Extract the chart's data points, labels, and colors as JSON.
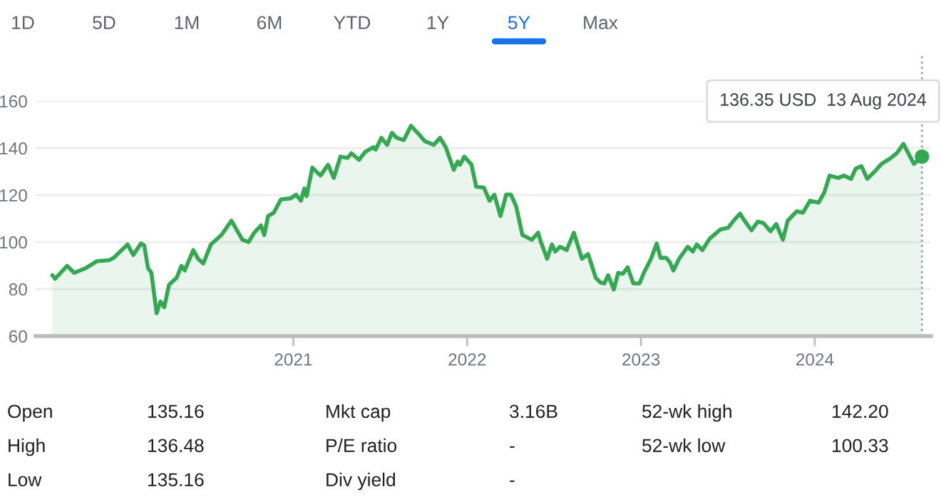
{
  "chart_data": [
    {
      "type": "other",
      "annotations": [
        "1D",
        "5D",
        "1M",
        "6M",
        "YTD",
        "1Y",
        "5Y",
        "Max"
      ],
      "colors": [
        "#5f6368",
        "#5f6368",
        "#5f6368",
        "#5f6368",
        "#5f6368",
        "#5f6368",
        "#1a73e8",
        "#5f6368"
      ]
    },
    {
      "type": "area",
      "xlim": [
        "2019-07-10",
        "2024-09-01"
      ],
      "ylim": [
        60,
        160
      ],
      "xticks": [
        {
          "value": "2021-01-01",
          "label": "2021"
        },
        {
          "value": "2022-01-01",
          "label": "2022"
        },
        {
          "value": "2023-01-01",
          "label": "2023"
        },
        {
          "value": "2024-01-01",
          "label": "2024"
        }
      ],
      "yticks": [
        60,
        80,
        100,
        120,
        140,
        160
      ],
      "grid": "y",
      "ref_lines": [
        {
          "axis": "x",
          "value": "2024-08-13",
          "line_style": "dotted",
          "color": "#9aa0a6"
        }
      ],
      "annotations": [
        "136.35 USD  13 Aug 2024"
      ],
      "series": [
        {
          "color": "#34a853",
          "x": [
            "2019-08-14",
            "2019-08-20",
            "2019-09-14",
            "2019-09-29",
            "2019-10-23",
            "2019-11-16",
            "2019-12-11",
            "2019-12-21",
            "2020-01-19",
            "2020-01-31",
            "2020-02-16",
            "2020-02-23",
            "2020-03-02",
            "2020-03-09",
            "2020-03-20",
            "2020-03-28",
            "2020-04-05",
            "2020-04-15",
            "2020-05-01",
            "2020-05-11",
            "2020-05-18",
            "2020-06-05",
            "2020-06-15",
            "2020-06-26",
            "2020-07-12",
            "2020-08-03",
            "2020-08-24",
            "2020-09-16",
            "2020-09-29",
            "2020-10-11",
            "2020-10-25",
            "2020-11-01",
            "2020-11-09",
            "2020-11-21",
            "2020-12-06",
            "2020-12-26",
            "2021-01-07",
            "2021-01-17",
            "2021-01-24",
            "2021-01-29",
            "2021-02-10",
            "2021-02-27",
            "2021-03-15",
            "2021-03-27",
            "2021-04-10",
            "2021-04-25",
            "2021-05-03",
            "2021-05-19",
            "2021-06-01",
            "2021-06-18",
            "2021-06-23",
            "2021-07-05",
            "2021-07-17",
            "2021-07-27",
            "2021-08-06",
            "2021-08-21",
            "2021-09-05",
            "2021-09-19",
            "2021-10-04",
            "2021-10-23",
            "2021-11-05",
            "2021-11-17",
            "2021-12-04",
            "2021-12-12",
            "2021-12-17",
            "2021-12-26",
            "2022-01-10",
            "2022-01-20",
            "2022-02-05",
            "2022-02-17",
            "2022-02-27",
            "2022-03-12",
            "2022-03-24",
            "2022-04-03",
            "2022-04-14",
            "2022-04-27",
            "2022-05-17",
            "2022-05-30",
            "2022-06-05",
            "2022-06-18",
            "2022-06-28",
            "2022-07-05",
            "2022-07-15",
            "2022-07-29",
            "2022-08-13",
            "2022-08-30",
            "2022-09-12",
            "2022-09-28",
            "2022-10-08",
            "2022-10-16",
            "2022-10-24",
            "2022-11-05",
            "2022-11-14",
            "2022-11-24",
            "2022-12-04",
            "2022-12-16",
            "2022-12-29",
            "2023-01-07",
            "2023-01-22",
            "2023-02-03",
            "2023-02-11",
            "2023-02-23",
            "2023-03-03",
            "2023-03-10",
            "2023-03-22",
            "2023-04-09",
            "2023-04-20",
            "2023-04-28",
            "2023-05-10",
            "2023-05-25",
            "2023-06-17",
            "2023-07-03",
            "2023-07-16",
            "2023-07-28",
            "2023-08-05",
            "2023-08-21",
            "2023-09-03",
            "2023-09-15",
            "2023-09-30",
            "2023-10-12",
            "2023-10-26",
            "2023-11-05",
            "2023-11-24",
            "2023-12-07",
            "2023-12-22",
            "2024-01-09",
            "2024-01-21",
            "2024-02-01",
            "2024-02-19",
            "2024-03-02",
            "2024-03-17",
            "2024-03-27",
            "2024-04-08",
            "2024-04-20",
            "2024-05-07",
            "2024-05-20",
            "2024-06-06",
            "2024-06-21",
            "2024-07-05",
            "2024-07-27",
            "2024-08-13"
          ],
          "values": [
            85.9,
            84.4,
            89.9,
            86.9,
            88.9,
            91.9,
            92.3,
            93.3,
            99.0,
            94.5,
            99.4,
            98.6,
            88.9,
            86.9,
            69.7,
            74.7,
            72.3,
            81.8,
            84.8,
            89.9,
            87.9,
            96.6,
            92.9,
            90.9,
            99.0,
            103.0,
            109.1,
            101.0,
            100.0,
            104.0,
            107.1,
            103.0,
            111.1,
            112.5,
            118.2,
            118.6,
            120.2,
            117.6,
            122.8,
            119.6,
            131.7,
            128.3,
            132.9,
            127.3,
            136.4,
            135.8,
            137.8,
            135.0,
            138.4,
            140.4,
            139.4,
            144.4,
            141.4,
            146.5,
            144.4,
            143.4,
            149.5,
            146.5,
            143.0,
            141.4,
            144.4,
            140.4,
            130.7,
            134.3,
            132.9,
            136.4,
            133.0,
            123.6,
            123.2,
            117.6,
            120.2,
            111.1,
            120.2,
            120.2,
            115.2,
            103.0,
            101.0,
            104.0,
            100.0,
            92.9,
            99.0,
            96.0,
            98.0,
            96.6,
            104.0,
            92.9,
            94.9,
            84.8,
            82.8,
            82.4,
            85.9,
            79.8,
            86.9,
            86.5,
            89.3,
            82.4,
            82.4,
            86.9,
            92.9,
            99.4,
            93.3,
            93.3,
            91.3,
            87.9,
            92.9,
            98.0,
            96.0,
            99.0,
            96.6,
            101.4,
            105.4,
            106.1,
            109.5,
            112.1,
            109.5,
            105.0,
            108.7,
            108.1,
            104.6,
            107.7,
            101.0,
            109.1,
            113.1,
            112.5,
            117.6,
            116.8,
            121.2,
            128.3,
            127.3,
            128.3,
            126.9,
            131.3,
            132.3,
            126.9,
            130.3,
            133.3,
            135.4,
            137.8,
            141.8,
            133.3,
            136.35
          ]
        },
        {
          "type": "scatter",
          "color": "#34a853",
          "x": [
            "2024-08-13"
          ],
          "values": [
            136.35
          ]
        }
      ]
    },
    {
      "type": "other",
      "annotations": [
        "Open",
        "135.16",
        "Mkt cap",
        "3.16B",
        "52-wk high",
        "142.20",
        "High",
        "136.48",
        "P/E ratio",
        "-",
        "52-wk low",
        "100.33",
        "Low",
        "135.16",
        "Div yield",
        "-"
      ]
    }
  ]
}
